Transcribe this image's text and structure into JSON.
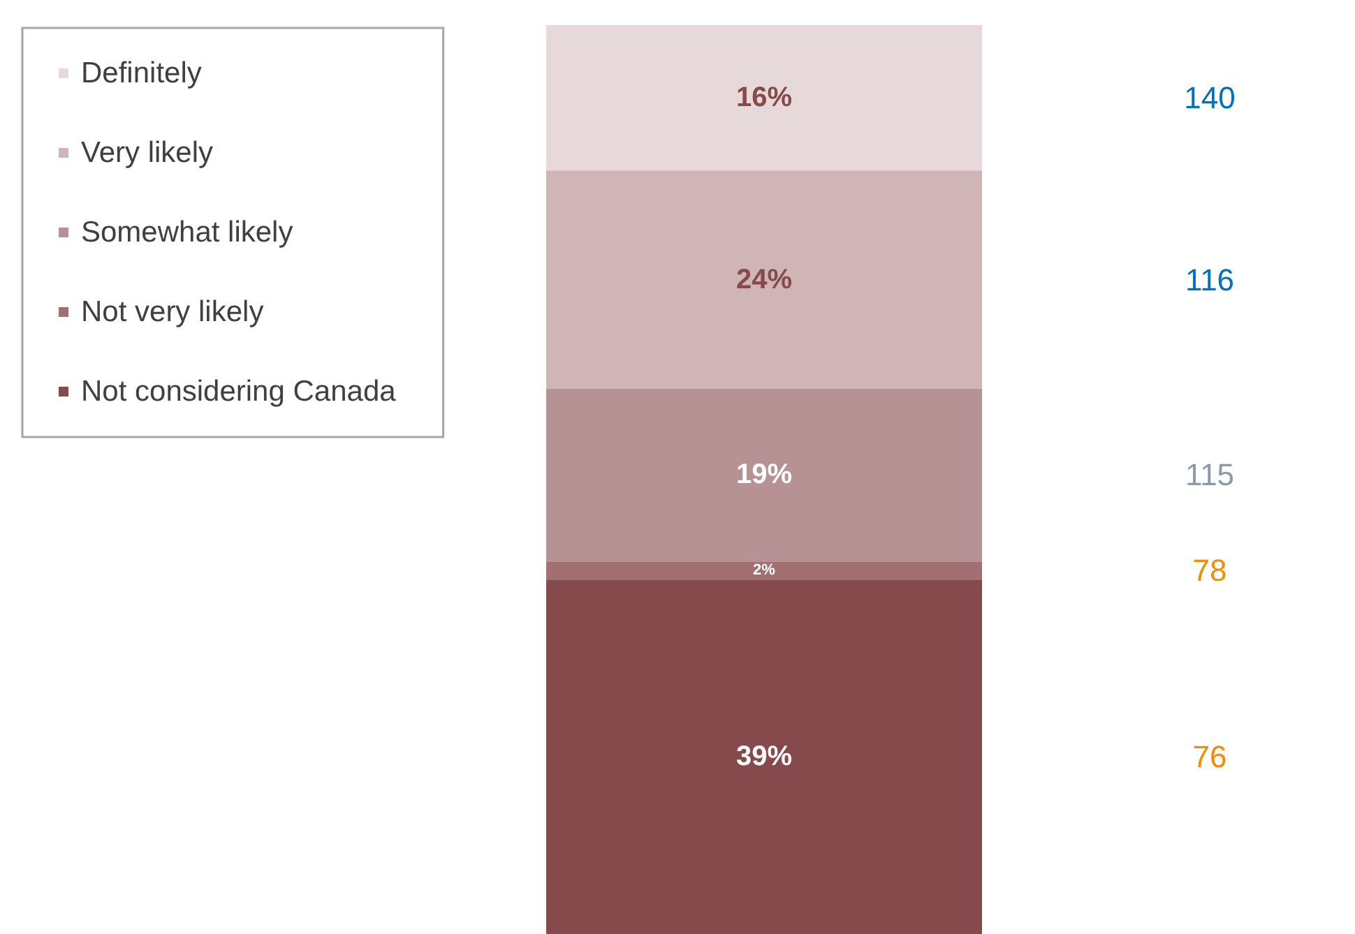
{
  "chart_data": {
    "type": "bar",
    "stacked": true,
    "categories": [
      null
    ],
    "ylim": [
      0,
      100
    ],
    "legend": "top left",
    "tick_labels": false,
    "series": [
      {
        "name": "Not considering Canada",
        "color": "#864a4c",
        "values": [
          39
        ],
        "value_labels": [
          "39%"
        ]
      },
      {
        "name": "Not very likely",
        "color": "#a46f72",
        "values": [
          2
        ],
        "value_labels": [
          "2%"
        ]
      },
      {
        "name": "Somewhat likely",
        "color": "#b79294",
        "values": [
          19
        ],
        "value_labels": [
          "19%"
        ]
      },
      {
        "name": "Very likely",
        "color": "#cfb5b5",
        "values": [
          24
        ],
        "value_labels": [
          "24%"
        ]
      },
      {
        "name": "Definitely",
        "color": "#e7d9d9",
        "values": [
          16
        ],
        "value_labels": [
          "16%"
        ]
      }
    ],
    "annotations": [
      "140",
      "116",
      "115",
      "78",
      "76"
    ]
  }
}
